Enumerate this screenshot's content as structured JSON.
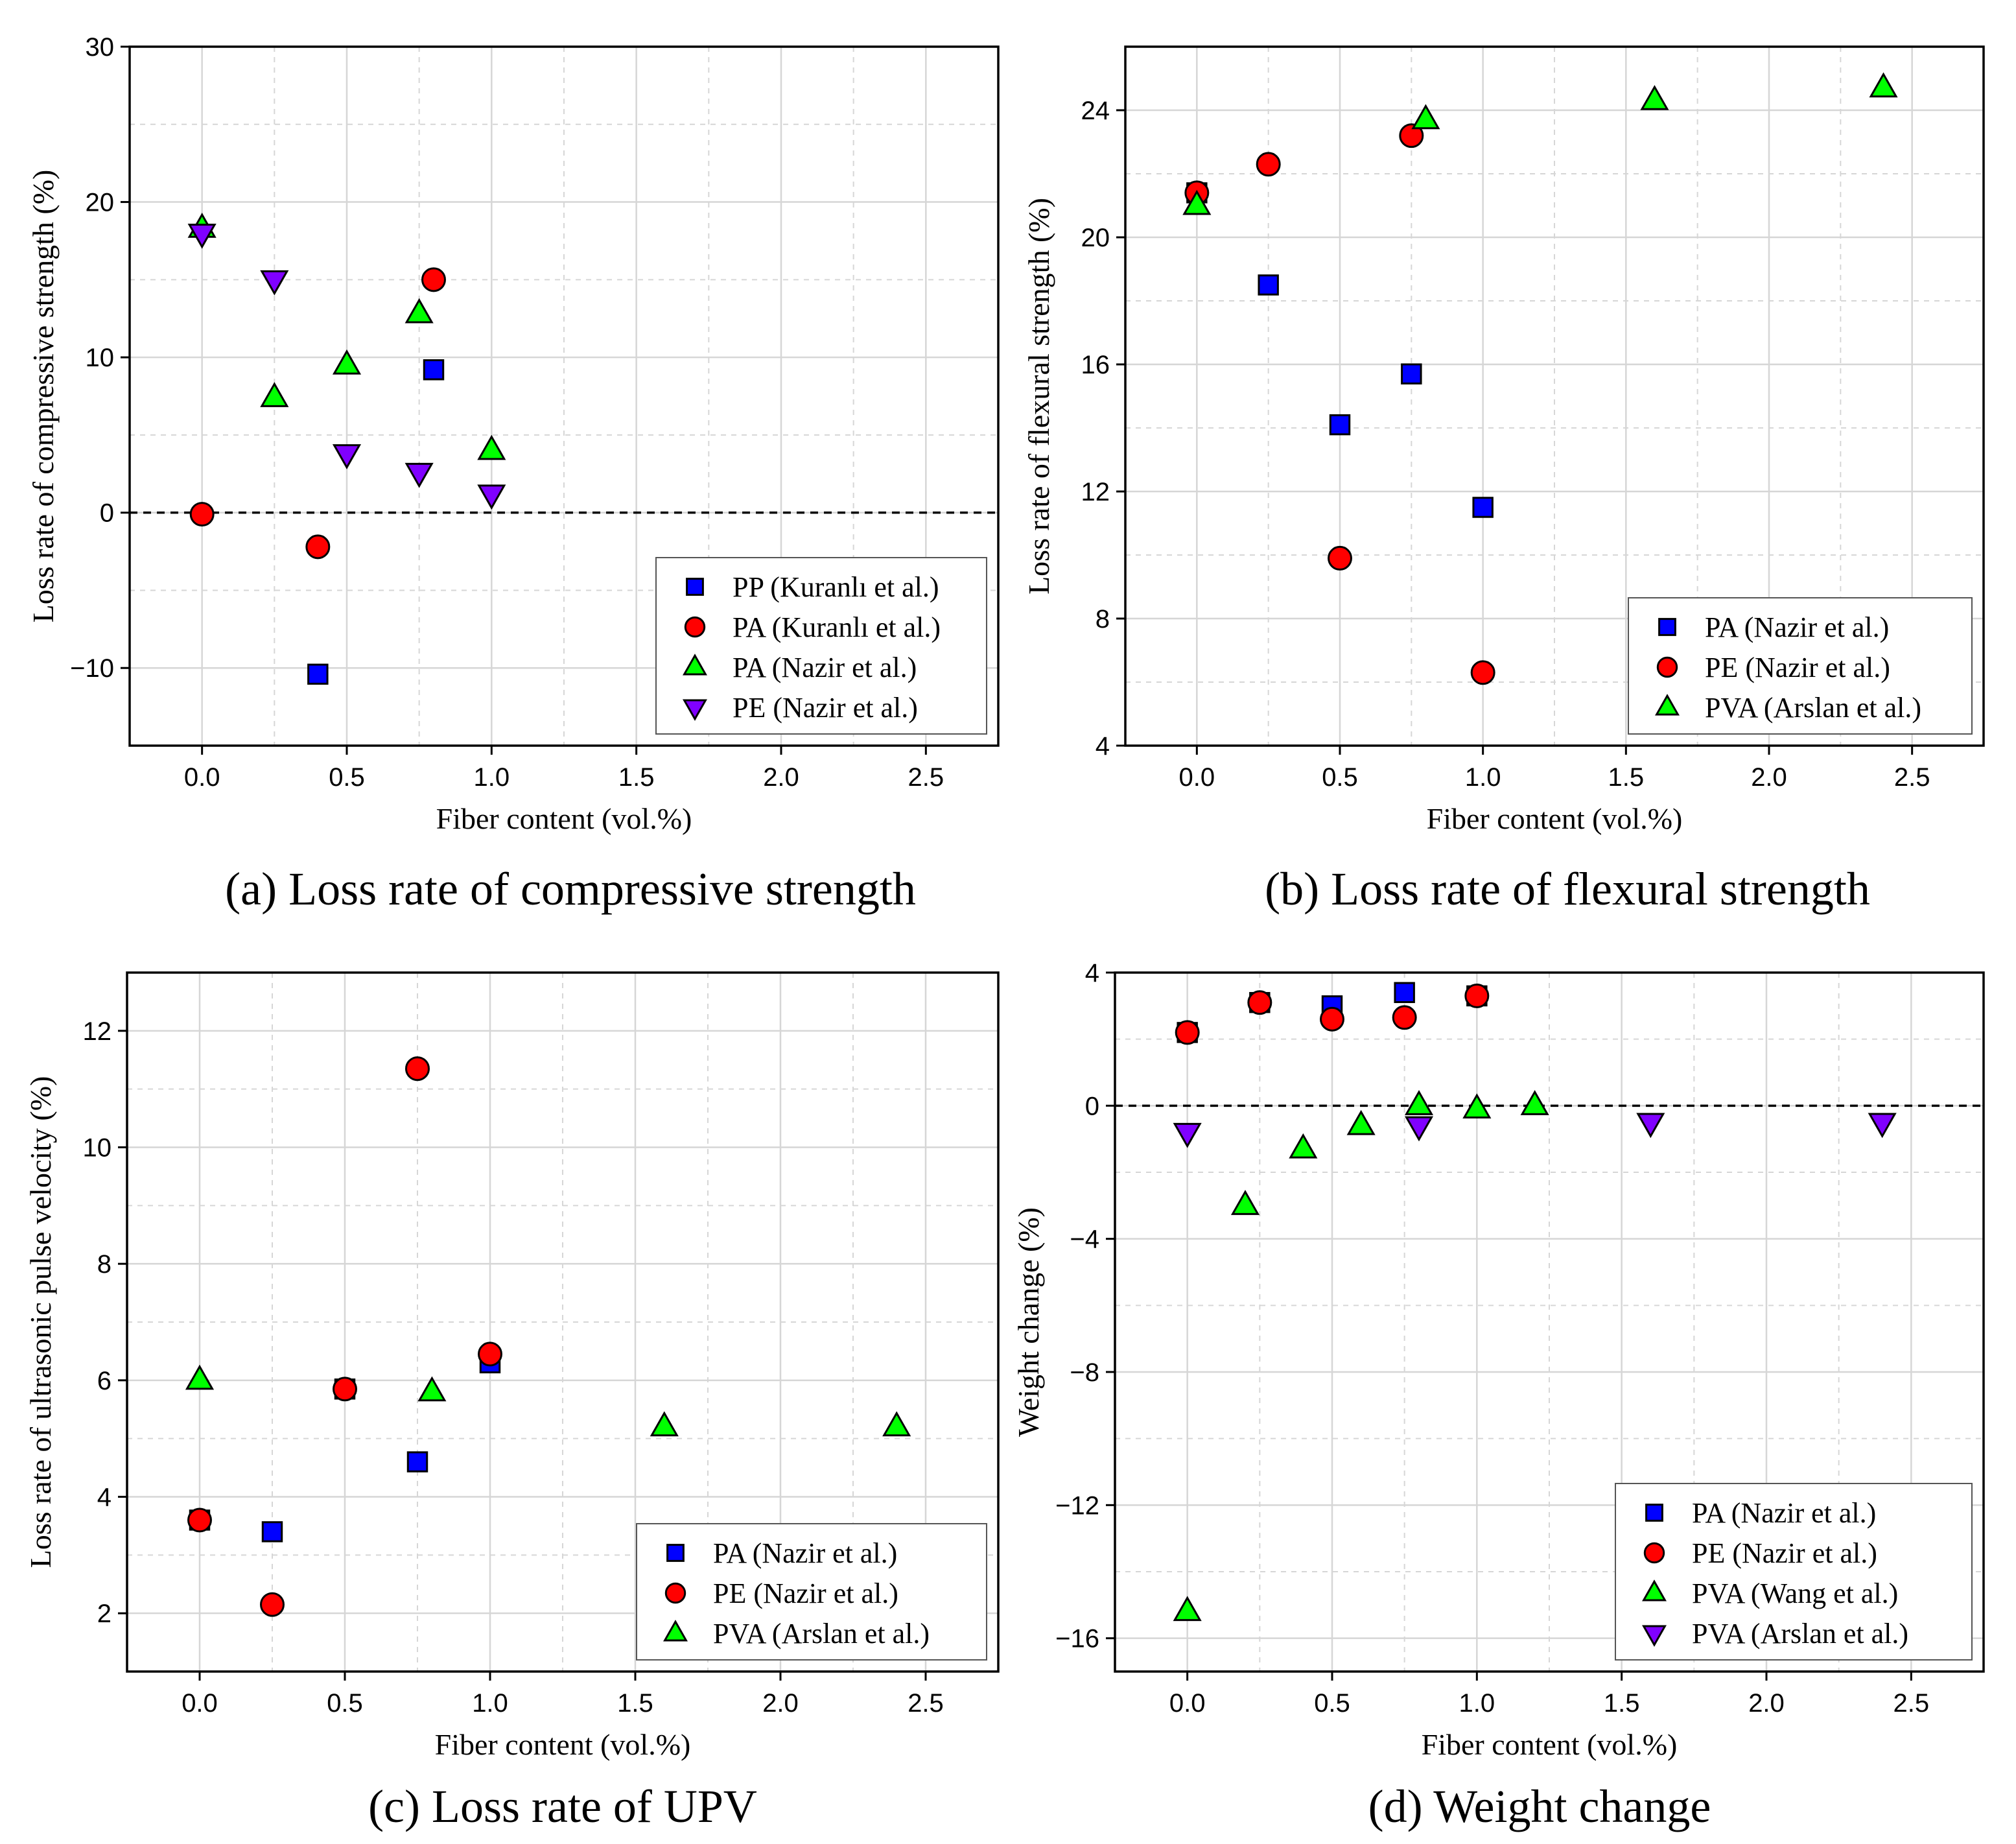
{
  "colors": {
    "square": "#0000ff",
    "circle": "#ff0000",
    "triangle_up": "#00ff00",
    "triangle_down": "#8000ff",
    "grid": "#d6d6d6",
    "axis": "#000000"
  },
  "chart_data": [
    {
      "id": "a",
      "type": "scatter",
      "caption": "(a) Loss rate of compressive strength",
      "xlabel": "Fiber content (vol.%)",
      "ylabel": "Loss rate of compressive strength (%)",
      "xlim": [
        -0.25,
        2.75
      ],
      "ylim": [
        -15,
        30
      ],
      "xticks": [
        0,
        0.5,
        1,
        1.5,
        2,
        2.5
      ],
      "xtick_labels": [
        "0.0",
        "0.5",
        "1.0",
        "1.5",
        "2.0",
        "2.5"
      ],
      "yticks": [
        -10,
        0,
        10,
        20,
        30
      ],
      "ytick_labels": [
        "−10",
        "0",
        "10",
        "20",
        "30"
      ],
      "zero_line": true,
      "legend_position": "bottom-right",
      "series": [
        {
          "name": "PP (Kuranlı et al.)",
          "marker": "square",
          "points": [
            [
              0.4,
              -10.4
            ],
            [
              0.8,
              9.2
            ]
          ]
        },
        {
          "name": "PA (Kuranlı et al.)",
          "marker": "circle",
          "points": [
            [
              0.0,
              -0.1
            ],
            [
              0.4,
              -2.2
            ],
            [
              0.8,
              15.0
            ]
          ]
        },
        {
          "name": "PA (Nazir et al.)",
          "marker": "triangle_up",
          "points": [
            [
              0.0,
              18.3
            ],
            [
              0.25,
              7.4
            ],
            [
              0.5,
              9.5
            ],
            [
              0.75,
              12.8
            ],
            [
              1.0,
              4.0
            ]
          ]
        },
        {
          "name": "PE (Nazir et al.)",
          "marker": "triangle_down",
          "points": [
            [
              0.0,
              18.0
            ],
            [
              0.25,
              15.0
            ],
            [
              0.5,
              3.8
            ],
            [
              0.75,
              2.6
            ],
            [
              1.0,
              1.2
            ]
          ]
        }
      ]
    },
    {
      "id": "b",
      "type": "scatter",
      "caption": "(b) Loss rate of flexural strength",
      "xlabel": "Fiber content (vol.%)",
      "ylabel": "Loss rate of flexural strength (%)",
      "xlim": [
        -0.25,
        2.75
      ],
      "ylim": [
        4,
        26
      ],
      "xticks": [
        0,
        0.5,
        1,
        1.5,
        2,
        2.5
      ],
      "xtick_labels": [
        "0.0",
        "0.5",
        "1.0",
        "1.5",
        "2.0",
        "2.5"
      ],
      "yticks": [
        4,
        8,
        12,
        16,
        20,
        24
      ],
      "ytick_labels": [
        "4",
        "8",
        "12",
        "16",
        "20",
        "24"
      ],
      "zero_line": false,
      "legend_position": "bottom-right",
      "series": [
        {
          "name": "PA (Nazir et al.)",
          "marker": "square",
          "points": [
            [
              0.0,
              21.4
            ],
            [
              0.25,
              18.5
            ],
            [
              0.5,
              14.1
            ],
            [
              0.75,
              15.7
            ],
            [
              1.0,
              11.5
            ]
          ]
        },
        {
          "name": "PE (Nazir et al.)",
          "marker": "circle",
          "points": [
            [
              0.0,
              21.4
            ],
            [
              0.25,
              22.3
            ],
            [
              0.5,
              9.9
            ],
            [
              0.75,
              23.2
            ],
            [
              1.0,
              6.3
            ]
          ]
        },
        {
          "name": "PVA (Arslan et al.)",
          "marker": "triangle_up",
          "points": [
            [
              0.0,
              21.0
            ],
            [
              0.8,
              23.7
            ],
            [
              1.6,
              24.3
            ],
            [
              2.4,
              24.7
            ]
          ]
        }
      ]
    },
    {
      "id": "c",
      "type": "scatter",
      "caption": "(c) Loss rate of UPV",
      "xlabel": "Fiber content (vol.%)",
      "ylabel": "Loss rate of ultrasonic pulse velocity (%)",
      "xlim": [
        -0.25,
        2.75
      ],
      "ylim": [
        1,
        13
      ],
      "xticks": [
        0,
        0.5,
        1,
        1.5,
        2,
        2.5
      ],
      "xtick_labels": [
        "0.0",
        "0.5",
        "1.0",
        "1.5",
        "2.0",
        "2.5"
      ],
      "yticks": [
        2,
        4,
        6,
        8,
        10,
        12
      ],
      "ytick_labels": [
        "2",
        "4",
        "6",
        "8",
        "10",
        "12"
      ],
      "zero_line": false,
      "legend_position": "bottom-right",
      "series": [
        {
          "name": "PA (Nazir et al.)",
          "marker": "square",
          "points": [
            [
              0.0,
              3.6
            ],
            [
              0.25,
              3.4
            ],
            [
              0.5,
              5.85
            ],
            [
              0.75,
              4.6
            ],
            [
              1.0,
              6.3
            ]
          ]
        },
        {
          "name": "PE (Nazir et al.)",
          "marker": "circle",
          "points": [
            [
              0.0,
              3.6
            ],
            [
              0.25,
              2.15
            ],
            [
              0.5,
              5.85
            ],
            [
              0.75,
              11.35
            ],
            [
              1.0,
              6.45
            ]
          ]
        },
        {
          "name": "PVA (Arslan et al.)",
          "marker": "triangle_up",
          "points": [
            [
              0.0,
              6.0
            ],
            [
              0.8,
              5.8
            ],
            [
              1.6,
              5.2
            ],
            [
              2.4,
              5.2
            ]
          ]
        }
      ]
    },
    {
      "id": "d",
      "type": "scatter",
      "caption": "(d) Weight change",
      "xlabel": "Fiber content (vol.%)",
      "ylabel": "Weight change (%)",
      "xlim": [
        -0.25,
        2.75
      ],
      "ylim": [
        -17,
        4
      ],
      "xticks": [
        0,
        0.5,
        1,
        1.5,
        2,
        2.5
      ],
      "xtick_labels": [
        "0.0",
        "0.5",
        "1.0",
        "1.5",
        "2.0",
        "2.5"
      ],
      "yticks": [
        -16,
        -12,
        -8,
        -4,
        0,
        4
      ],
      "ytick_labels": [
        "−16",
        "−12",
        "−8",
        "−4",
        "0",
        "4"
      ],
      "zero_line": true,
      "legend_position": "bottom-right",
      "series": [
        {
          "name": "PA (Nazir et al.)",
          "marker": "square",
          "points": [
            [
              0.0,
              2.2
            ],
            [
              0.25,
              3.1
            ],
            [
              0.5,
              3.0
            ],
            [
              0.75,
              3.4
            ],
            [
              1.0,
              3.3
            ]
          ]
        },
        {
          "name": "PE (Nazir et al.)",
          "marker": "circle",
          "points": [
            [
              0.0,
              2.2
            ],
            [
              0.25,
              3.1
            ],
            [
              0.5,
              2.6
            ],
            [
              0.75,
              2.65
            ],
            [
              1.0,
              3.3
            ]
          ]
        },
        {
          "name": "PVA (Wang et al.)",
          "marker": "triangle_up",
          "points": [
            [
              0.0,
              -15.2
            ],
            [
              0.2,
              -3.0
            ],
            [
              0.4,
              -1.3
            ],
            [
              0.6,
              -0.6
            ],
            [
              0.8,
              0.0
            ],
            [
              1.0,
              -0.1
            ],
            [
              1.2,
              0.0
            ]
          ]
        },
        {
          "name": "PVA (Arslan et al.)",
          "marker": "triangle_down",
          "points": [
            [
              0.0,
              -0.8
            ],
            [
              0.8,
              -0.6
            ],
            [
              1.6,
              -0.5
            ],
            [
              2.4,
              -0.5
            ]
          ]
        }
      ]
    }
  ]
}
